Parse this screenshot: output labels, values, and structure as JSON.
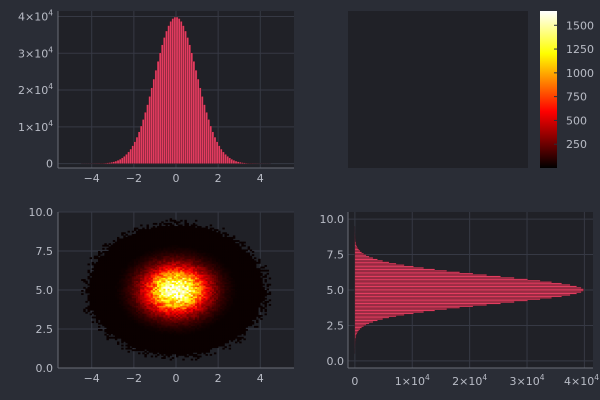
{
  "colors": {
    "figure_bg": "#2a2d36",
    "axes_bg": "#202127",
    "grid": "#363944",
    "tick_text": "#b9bcc6",
    "bar_fill": "#e33c60",
    "bar_edge": "#2a1418"
  },
  "chart_data": [
    {
      "type": "bar",
      "panel": "top-left",
      "description_of_data": "marginal histogram of x (normal, mean 0, sd 1), bin width 0.1",
      "x_tick_labels": [
        "−4",
        "−2",
        "0",
        "2",
        "4"
      ],
      "x_ticks": [
        -4,
        -2,
        0,
        2,
        4
      ],
      "y_tick_labels": [
        {
          "base": "0",
          "exp": ""
        },
        {
          "base": "1×10",
          "exp": "4"
        },
        {
          "base": "2×10",
          "exp": "4"
        },
        {
          "base": "3×10",
          "exp": "4"
        },
        {
          "base": "4×10",
          "exp": "4"
        }
      ],
      "y_ticks": [
        0,
        10000,
        20000,
        30000,
        40000
      ],
      "xlim": [
        -5.6,
        5.6
      ],
      "ylim": [
        -1200,
        41500
      ],
      "bin_width": 0.1,
      "bins": {
        "start": -4.5,
        "end": 4.5,
        "peak_count": 39900,
        "mean": 0,
        "sd": 1
      },
      "grid": true,
      "title": "",
      "xlabel": "",
      "ylabel": ""
    },
    {
      "type": "heatmap",
      "panel": "top-right",
      "role": "colorbar",
      "colormap": "hot",
      "colorbar_tick_labels": [
        "250",
        "500",
        "750",
        "1000",
        "1250",
        "1500"
      ],
      "colorbar_ticks": [
        250,
        500,
        750,
        1000,
        1250,
        1500
      ],
      "clim": [
        0,
        1650
      ],
      "grid": false
    },
    {
      "type": "heatmap",
      "panel": "bottom-left",
      "description_of_data": "2D histogram of x (normal, mean 0, sd 1) vs y (normal, mean 5, sd 1)",
      "x_tick_labels": [
        "−4",
        "−2",
        "0",
        "2",
        "4"
      ],
      "x_ticks": [
        -4,
        -2,
        0,
        2,
        4
      ],
      "y_tick_labels": [
        "0.0",
        "2.5",
        "5.0",
        "7.5",
        "10.0"
      ],
      "y_ticks": [
        0,
        2.5,
        5,
        7.5,
        10
      ],
      "xlim": [
        -5.6,
        5.6
      ],
      "ylim": [
        0,
        10
      ],
      "center": [
        0,
        5
      ],
      "peak_count": 1620,
      "colormap": "hot",
      "grid": true,
      "title": "",
      "xlabel": "",
      "ylabel": ""
    },
    {
      "type": "bar",
      "panel": "bottom-right",
      "orientation": "horizontal",
      "description_of_data": "marginal histogram of y (normal, mean 5, sd 1), bin width 0.1",
      "x_tick_labels": [
        {
          "base": "0",
          "exp": ""
        },
        {
          "base": "1×10",
          "exp": "4"
        },
        {
          "base": "2×10",
          "exp": "4"
        },
        {
          "base": "3×10",
          "exp": "4"
        },
        {
          "base": "4×10",
          "exp": "4"
        }
      ],
      "x_ticks": [
        0,
        10000,
        20000,
        30000,
        40000
      ],
      "y_tick_labels": [
        "0.0",
        "2.5",
        "5.0",
        "7.5",
        "10.0"
      ],
      "y_ticks": [
        0,
        2.5,
        5,
        7.5,
        10
      ],
      "xlim": [
        -1200,
        41500
      ],
      "ylim": [
        -0.5,
        10.5
      ],
      "bin_width": 0.1,
      "bins": {
        "start": 0.5,
        "end": 9.5,
        "peak_count": 39900,
        "mean": 5,
        "sd": 1
      },
      "grid": true,
      "title": "",
      "xlabel": "",
      "ylabel": ""
    }
  ]
}
